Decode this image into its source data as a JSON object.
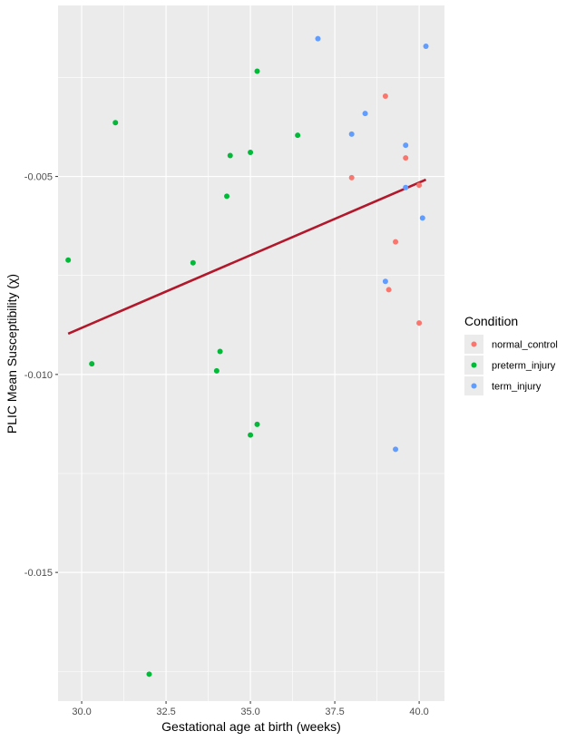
{
  "chart_data": {
    "type": "scatter",
    "xlabel": "Gestational age at birth (weeks)",
    "ylabel": "PLIC Mean Susceptibility (χ)",
    "xlim": [
      29.3,
      40.75
    ],
    "ylim": [
      -0.01825,
      -0.00068
    ],
    "x_ticks": [
      30.0,
      32.5,
      35.0,
      37.5,
      40.0
    ],
    "x_tick_labels": [
      "30.0",
      "32.5",
      "35.0",
      "37.5",
      "40.0"
    ],
    "y_ticks": [
      -0.015,
      -0.01,
      -0.005
    ],
    "y_tick_labels": [
      "-0.015",
      "-0.010",
      "-0.005"
    ],
    "grid": true,
    "legend": {
      "title": "Condition",
      "placement": "right"
    },
    "series": [
      {
        "name": "normal_control",
        "color": "#F8766D",
        "points": [
          {
            "x": 39.0,
            "y": -0.00297
          },
          {
            "x": 38.0,
            "y": -0.00503
          },
          {
            "x": 39.6,
            "y": -0.00453
          },
          {
            "x": 40.0,
            "y": -0.00522
          },
          {
            "x": 39.3,
            "y": -0.00665
          },
          {
            "x": 39.1,
            "y": -0.00786
          },
          {
            "x": 40.0,
            "y": -0.0087
          }
        ]
      },
      {
        "name": "preterm_injury",
        "color": "#00BA38",
        "points": [
          {
            "x": 35.2,
            "y": -0.00234
          },
          {
            "x": 31.0,
            "y": -0.00364
          },
          {
            "x": 36.4,
            "y": -0.00396
          },
          {
            "x": 35.0,
            "y": -0.00439
          },
          {
            "x": 34.4,
            "y": -0.00447
          },
          {
            "x": 34.3,
            "y": -0.0055
          },
          {
            "x": 29.6,
            "y": -0.00711
          },
          {
            "x": 33.3,
            "y": -0.00718
          },
          {
            "x": 34.1,
            "y": -0.00942
          },
          {
            "x": 30.3,
            "y": -0.00973
          },
          {
            "x": 34.0,
            "y": -0.00991
          },
          {
            "x": 35.2,
            "y": -0.01126
          },
          {
            "x": 35.0,
            "y": -0.01153
          },
          {
            "x": 32.0,
            "y": -0.01757
          }
        ]
      },
      {
        "name": "term_injury",
        "color": "#619CFF",
        "points": [
          {
            "x": 37.0,
            "y": -0.00152
          },
          {
            "x": 40.2,
            "y": -0.00171
          },
          {
            "x": 38.4,
            "y": -0.00341
          },
          {
            "x": 38.0,
            "y": -0.00393
          },
          {
            "x": 39.6,
            "y": -0.00421
          },
          {
            "x": 39.6,
            "y": -0.00528
          },
          {
            "x": 40.1,
            "y": -0.00605
          },
          {
            "x": 39.0,
            "y": -0.00765
          },
          {
            "x": 39.3,
            "y": -0.01189
          }
        ]
      }
    ],
    "trend_line": {
      "color": "#B2182B",
      "from": {
        "x": 29.6,
        "y": -0.00897
      },
      "to": {
        "x": 40.2,
        "y": -0.00508
      }
    }
  }
}
